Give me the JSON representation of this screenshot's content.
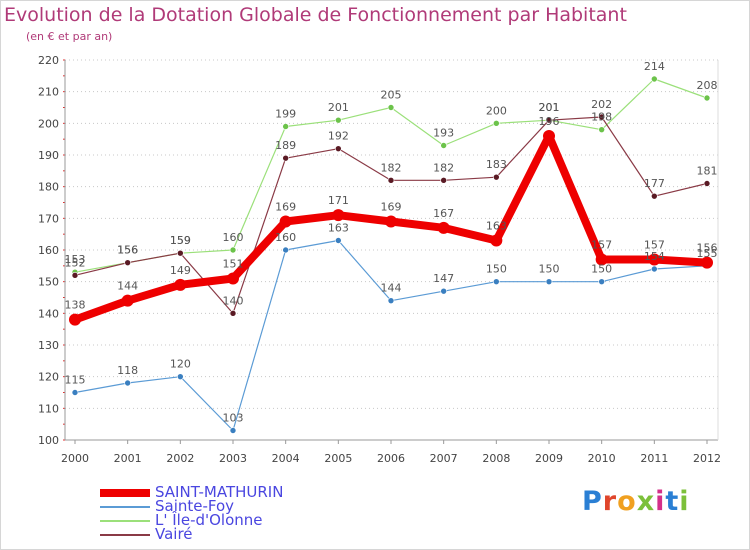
{
  "title": "Evolution de la Dotation Globale de Fonctionnement par Habitant",
  "subtitle": "(en € et par an)",
  "logo": {
    "text": "Proxiti",
    "colors": [
      "#2a7fd4",
      "#e0462c",
      "#f0a020",
      "#7cc03a",
      "#d4308a",
      "#2a7fd4",
      "#7cc03a"
    ]
  },
  "chart_data": {
    "type": "line",
    "title": "Evolution de la Dotation Globale de Fonctionnement par Habitant",
    "subtitle": "(en € et par an)",
    "x": [
      "2000",
      "2001",
      "2002",
      "2003",
      "2004",
      "2005",
      "2006",
      "2007",
      "2008",
      "2009",
      "2010",
      "2011",
      "2012"
    ],
    "ylim": [
      100,
      220
    ],
    "yticks": [
      100,
      110,
      120,
      130,
      140,
      150,
      160,
      170,
      180,
      190,
      200,
      210,
      220
    ],
    "grid": "horizontal-dotted",
    "legend": "bottom-left",
    "series": [
      {
        "name": "Sainte-Foy",
        "color": "#5b9bd5",
        "point": "#3a7fc0",
        "values": [
          115,
          118,
          120,
          103,
          160,
          163,
          144,
          147,
          150,
          150,
          150,
          154,
          155
        ]
      },
      {
        "name": "L' Île-d'Olonne",
        "color": "#9be07a",
        "point": "#6cc34a",
        "values": [
          153,
          156,
          159,
          160,
          199,
          201,
          205,
          193,
          200,
          201,
          198,
          214,
          208
        ]
      },
      {
        "name": "Vairé",
        "color": "#8a3a46",
        "point": "#5a1a24",
        "values": [
          152,
          156,
          159,
          140,
          189,
          192,
          182,
          182,
          183,
          201,
          202,
          177,
          181
        ]
      },
      {
        "name": "SAINT-MATHURIN",
        "color": "#ee0000",
        "point": "#ee0000",
        "values": [
          138,
          144,
          149,
          151,
          169,
          171,
          169,
          167,
          163,
          196,
          157,
          157,
          156
        ]
      }
    ],
    "legend_order": [
      "SAINT-MATHURIN",
      "Sainte-Foy",
      "L' Île-d'Olonne",
      "Vairé"
    ]
  }
}
